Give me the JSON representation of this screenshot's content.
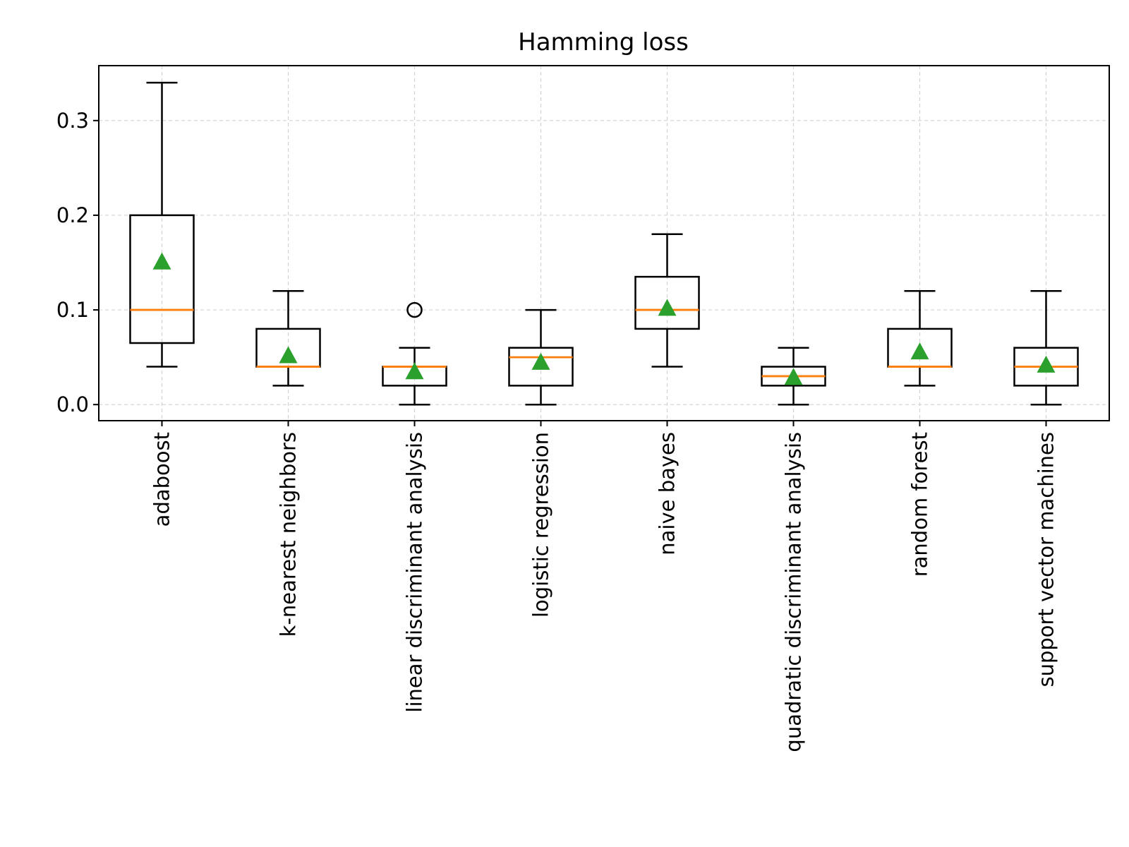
{
  "chart_data": {
    "type": "boxplot",
    "title": "Hamming loss",
    "xlabel": "",
    "ylabel": "",
    "ylim": [
      -0.017,
      0.358
    ],
    "yticks": [
      0.0,
      0.1,
      0.2,
      0.3
    ],
    "ytick_labels": [
      "0.0",
      "0.1",
      "0.2",
      "0.3"
    ],
    "grid": true,
    "categories": [
      "adaboost",
      "k-nearest neighbors",
      "linear discriminant analysis",
      "logistic regression",
      "naive bayes",
      "quadratic discriminant analysis",
      "random forest",
      "support vector machines"
    ],
    "boxes": [
      {
        "whisker_low": 0.04,
        "q1": 0.065,
        "median": 0.1,
        "q3": 0.2,
        "whisker_high": 0.34,
        "mean": 0.151,
        "outliers": []
      },
      {
        "whisker_low": 0.02,
        "q1": 0.04,
        "median": 0.04,
        "q3": 0.08,
        "whisker_high": 0.12,
        "mean": 0.052,
        "outliers": []
      },
      {
        "whisker_low": 0.0,
        "q1": 0.02,
        "median": 0.04,
        "q3": 0.04,
        "whisker_high": 0.06,
        "mean": 0.035,
        "outliers": [
          0.1
        ]
      },
      {
        "whisker_low": 0.0,
        "q1": 0.02,
        "median": 0.05,
        "q3": 0.06,
        "whisker_high": 0.1,
        "mean": 0.045,
        "outliers": []
      },
      {
        "whisker_low": 0.04,
        "q1": 0.08,
        "median": 0.1,
        "q3": 0.135,
        "whisker_high": 0.18,
        "mean": 0.102,
        "outliers": []
      },
      {
        "whisker_low": 0.0,
        "q1": 0.02,
        "median": 0.03,
        "q3": 0.04,
        "whisker_high": 0.06,
        "mean": 0.029,
        "outliers": []
      },
      {
        "whisker_low": 0.02,
        "q1": 0.04,
        "median": 0.04,
        "q3": 0.08,
        "whisker_high": 0.12,
        "mean": 0.056,
        "outliers": []
      },
      {
        "whisker_low": 0.0,
        "q1": 0.02,
        "median": 0.04,
        "q3": 0.06,
        "whisker_high": 0.12,
        "mean": 0.042,
        "outliers": []
      }
    ],
    "colors": {
      "box": "#000000",
      "median": "#ff7f0e",
      "mean": "#2ca02c",
      "grid": "#d3d3d3"
    }
  }
}
